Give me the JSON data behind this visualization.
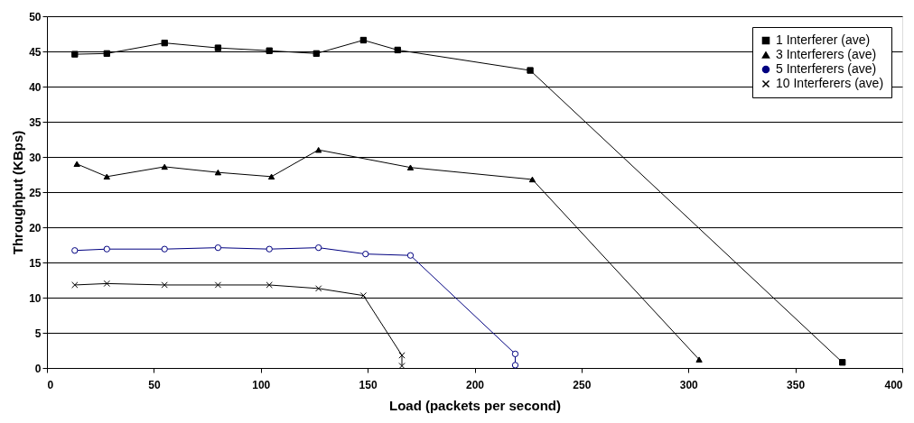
{
  "chart_data": {
    "type": "line",
    "xlabel": "Load (packets per second)",
    "ylabel": "Throughput (KBps)",
    "xlim": [
      0,
      400
    ],
    "xticks": [
      0,
      50,
      100,
      150,
      200,
      250,
      300,
      350,
      400
    ],
    "ylim": [
      0,
      50
    ],
    "yticks": [
      0,
      5,
      10,
      15,
      20,
      25,
      30,
      35,
      40,
      45,
      50
    ],
    "grid": "y",
    "legend": "top right",
    "line_style": "solid",
    "series": [
      {
        "name": "1 Interferer (ave)",
        "color": "#000000",
        "marker": "square",
        "x": [
          13,
          28,
          55,
          80,
          104,
          126,
          148,
          164,
          226,
          372
        ],
        "values": [
          44.6,
          44.7,
          46.2,
          45.5,
          45.1,
          44.7,
          46.6,
          45.2,
          42.3,
          0.8
        ]
      },
      {
        "name": "3 Interferers (ave)",
        "color": "#000000",
        "marker": "triangle",
        "x": [
          14,
          28,
          55,
          80,
          105,
          127,
          170,
          227,
          305
        ],
        "values": [
          29.0,
          27.2,
          28.6,
          27.8,
          27.2,
          31.0,
          28.5,
          26.8,
          1.2
        ]
      },
      {
        "name": "5 Interferers (ave)",
        "color": "#000080",
        "marker": "circle",
        "x": [
          13,
          28,
          55,
          80,
          104,
          127,
          149,
          170,
          219,
          219
        ],
        "values": [
          16.7,
          16.9,
          16.9,
          17.1,
          16.9,
          17.1,
          16.2,
          16.0,
          2.0,
          0.4
        ]
      },
      {
        "name": "10 Interferers (ave)",
        "color": "#000000",
        "marker": "cross",
        "x": [
          13,
          28,
          55,
          80,
          104,
          127,
          148,
          166,
          166
        ],
        "values": [
          11.8,
          12.0,
          11.8,
          11.8,
          11.8,
          11.3,
          10.3,
          1.8,
          0.3
        ]
      }
    ]
  }
}
